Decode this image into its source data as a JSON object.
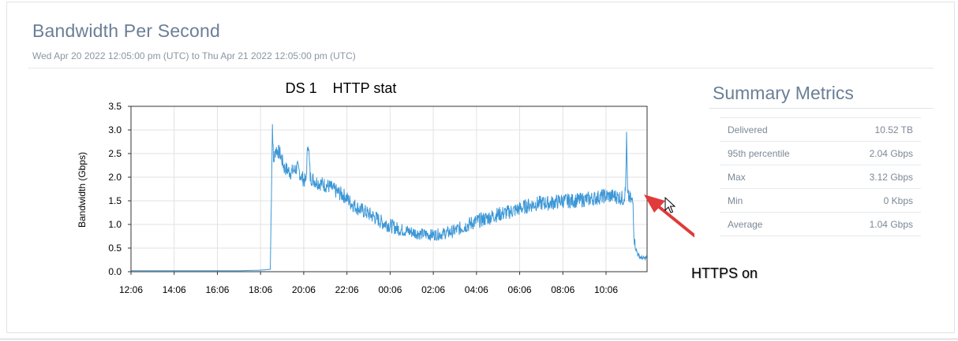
{
  "header": {
    "title": "Bandwidth Per Second",
    "date_range": "Wed Apr 20 2022 12:05:00 pm (UTC) to Thu Apr 21 2022 12:05:00 pm (UTC)"
  },
  "summary": {
    "title": "Summary Metrics",
    "rows": [
      {
        "label": "Delivered",
        "value": "10.52 TB"
      },
      {
        "label": "95th percentile",
        "value": "2.04 Gbps"
      },
      {
        "label": "Max",
        "value": "3.12 Gbps"
      },
      {
        "label": "Min",
        "value": "0 Kbps"
      },
      {
        "label": "Average",
        "value": "1.04 Gbps"
      }
    ]
  },
  "annotations": {
    "https_note": "HTTPS on",
    "arrow_color": "#e03a3a"
  },
  "chart_data": {
    "type": "line",
    "title": "DS 1    HTTP stat",
    "ylabel": "Bandwidth (Gbps)",
    "xlabel": "",
    "ylim": [
      0,
      3.5
    ],
    "yticks": [
      "0.0",
      "0.5",
      "1.0",
      "1.5",
      "2.0",
      "2.5",
      "3.0",
      "3.5"
    ],
    "xticks": [
      "12:06",
      "14:06",
      "16:06",
      "18:06",
      "20:06",
      "22:06",
      "00:06",
      "02:06",
      "04:06",
      "06:06",
      "08:06",
      "10:06"
    ],
    "x_range_hours": [
      12.1,
      36.0
    ],
    "grid": true,
    "line_color": "#3c97d6",
    "series": [
      {
        "name": "",
        "points": [
          [
            12.1,
            0.02
          ],
          [
            13.0,
            0.02
          ],
          [
            14.0,
            0.02
          ],
          [
            15.0,
            0.02
          ],
          [
            16.0,
            0.02
          ],
          [
            17.0,
            0.02
          ],
          [
            18.0,
            0.03
          ],
          [
            18.3,
            0.04
          ],
          [
            18.55,
            0.05
          ],
          [
            18.6,
            1.6
          ],
          [
            18.65,
            3.12
          ],
          [
            18.7,
            2.3
          ],
          [
            18.8,
            2.6
          ],
          [
            19.0,
            2.5
          ],
          [
            19.2,
            2.2
          ],
          [
            19.5,
            2.1
          ],
          [
            19.8,
            2.2
          ],
          [
            20.0,
            2.0
          ],
          [
            20.2,
            1.9
          ],
          [
            20.3,
            2.8
          ],
          [
            20.4,
            2.0
          ],
          [
            20.7,
            1.9
          ],
          [
            21.0,
            1.85
          ],
          [
            21.3,
            1.8
          ],
          [
            21.6,
            1.7
          ],
          [
            22.0,
            1.6
          ],
          [
            22.3,
            1.45
          ],
          [
            22.6,
            1.35
          ],
          [
            23.0,
            1.25
          ],
          [
            23.4,
            1.15
          ],
          [
            23.7,
            1.05
          ],
          [
            24.0,
            1.0
          ],
          [
            24.5,
            0.9
          ],
          [
            25.0,
            0.85
          ],
          [
            25.5,
            0.8
          ],
          [
            26.0,
            0.78
          ],
          [
            26.5,
            0.8
          ],
          [
            27.0,
            0.85
          ],
          [
            27.5,
            0.95
          ],
          [
            28.0,
            1.05
          ],
          [
            28.5,
            1.12
          ],
          [
            29.0,
            1.2
          ],
          [
            29.5,
            1.25
          ],
          [
            30.0,
            1.32
          ],
          [
            30.5,
            1.4
          ],
          [
            31.0,
            1.45
          ],
          [
            31.5,
            1.45
          ],
          [
            32.0,
            1.5
          ],
          [
            32.5,
            1.5
          ],
          [
            33.0,
            1.52
          ],
          [
            33.5,
            1.55
          ],
          [
            34.0,
            1.6
          ],
          [
            34.5,
            1.6
          ],
          [
            34.9,
            1.55
          ],
          [
            35.0,
            1.7
          ],
          [
            35.05,
            2.82
          ],
          [
            35.1,
            1.6
          ],
          [
            35.2,
            1.55
          ],
          [
            35.35,
            1.45
          ],
          [
            35.4,
            0.7
          ],
          [
            35.5,
            0.45
          ],
          [
            35.6,
            0.35
          ],
          [
            35.7,
            0.3
          ],
          [
            35.85,
            0.28
          ],
          [
            36.0,
            0.3
          ]
        ]
      }
    ]
  }
}
